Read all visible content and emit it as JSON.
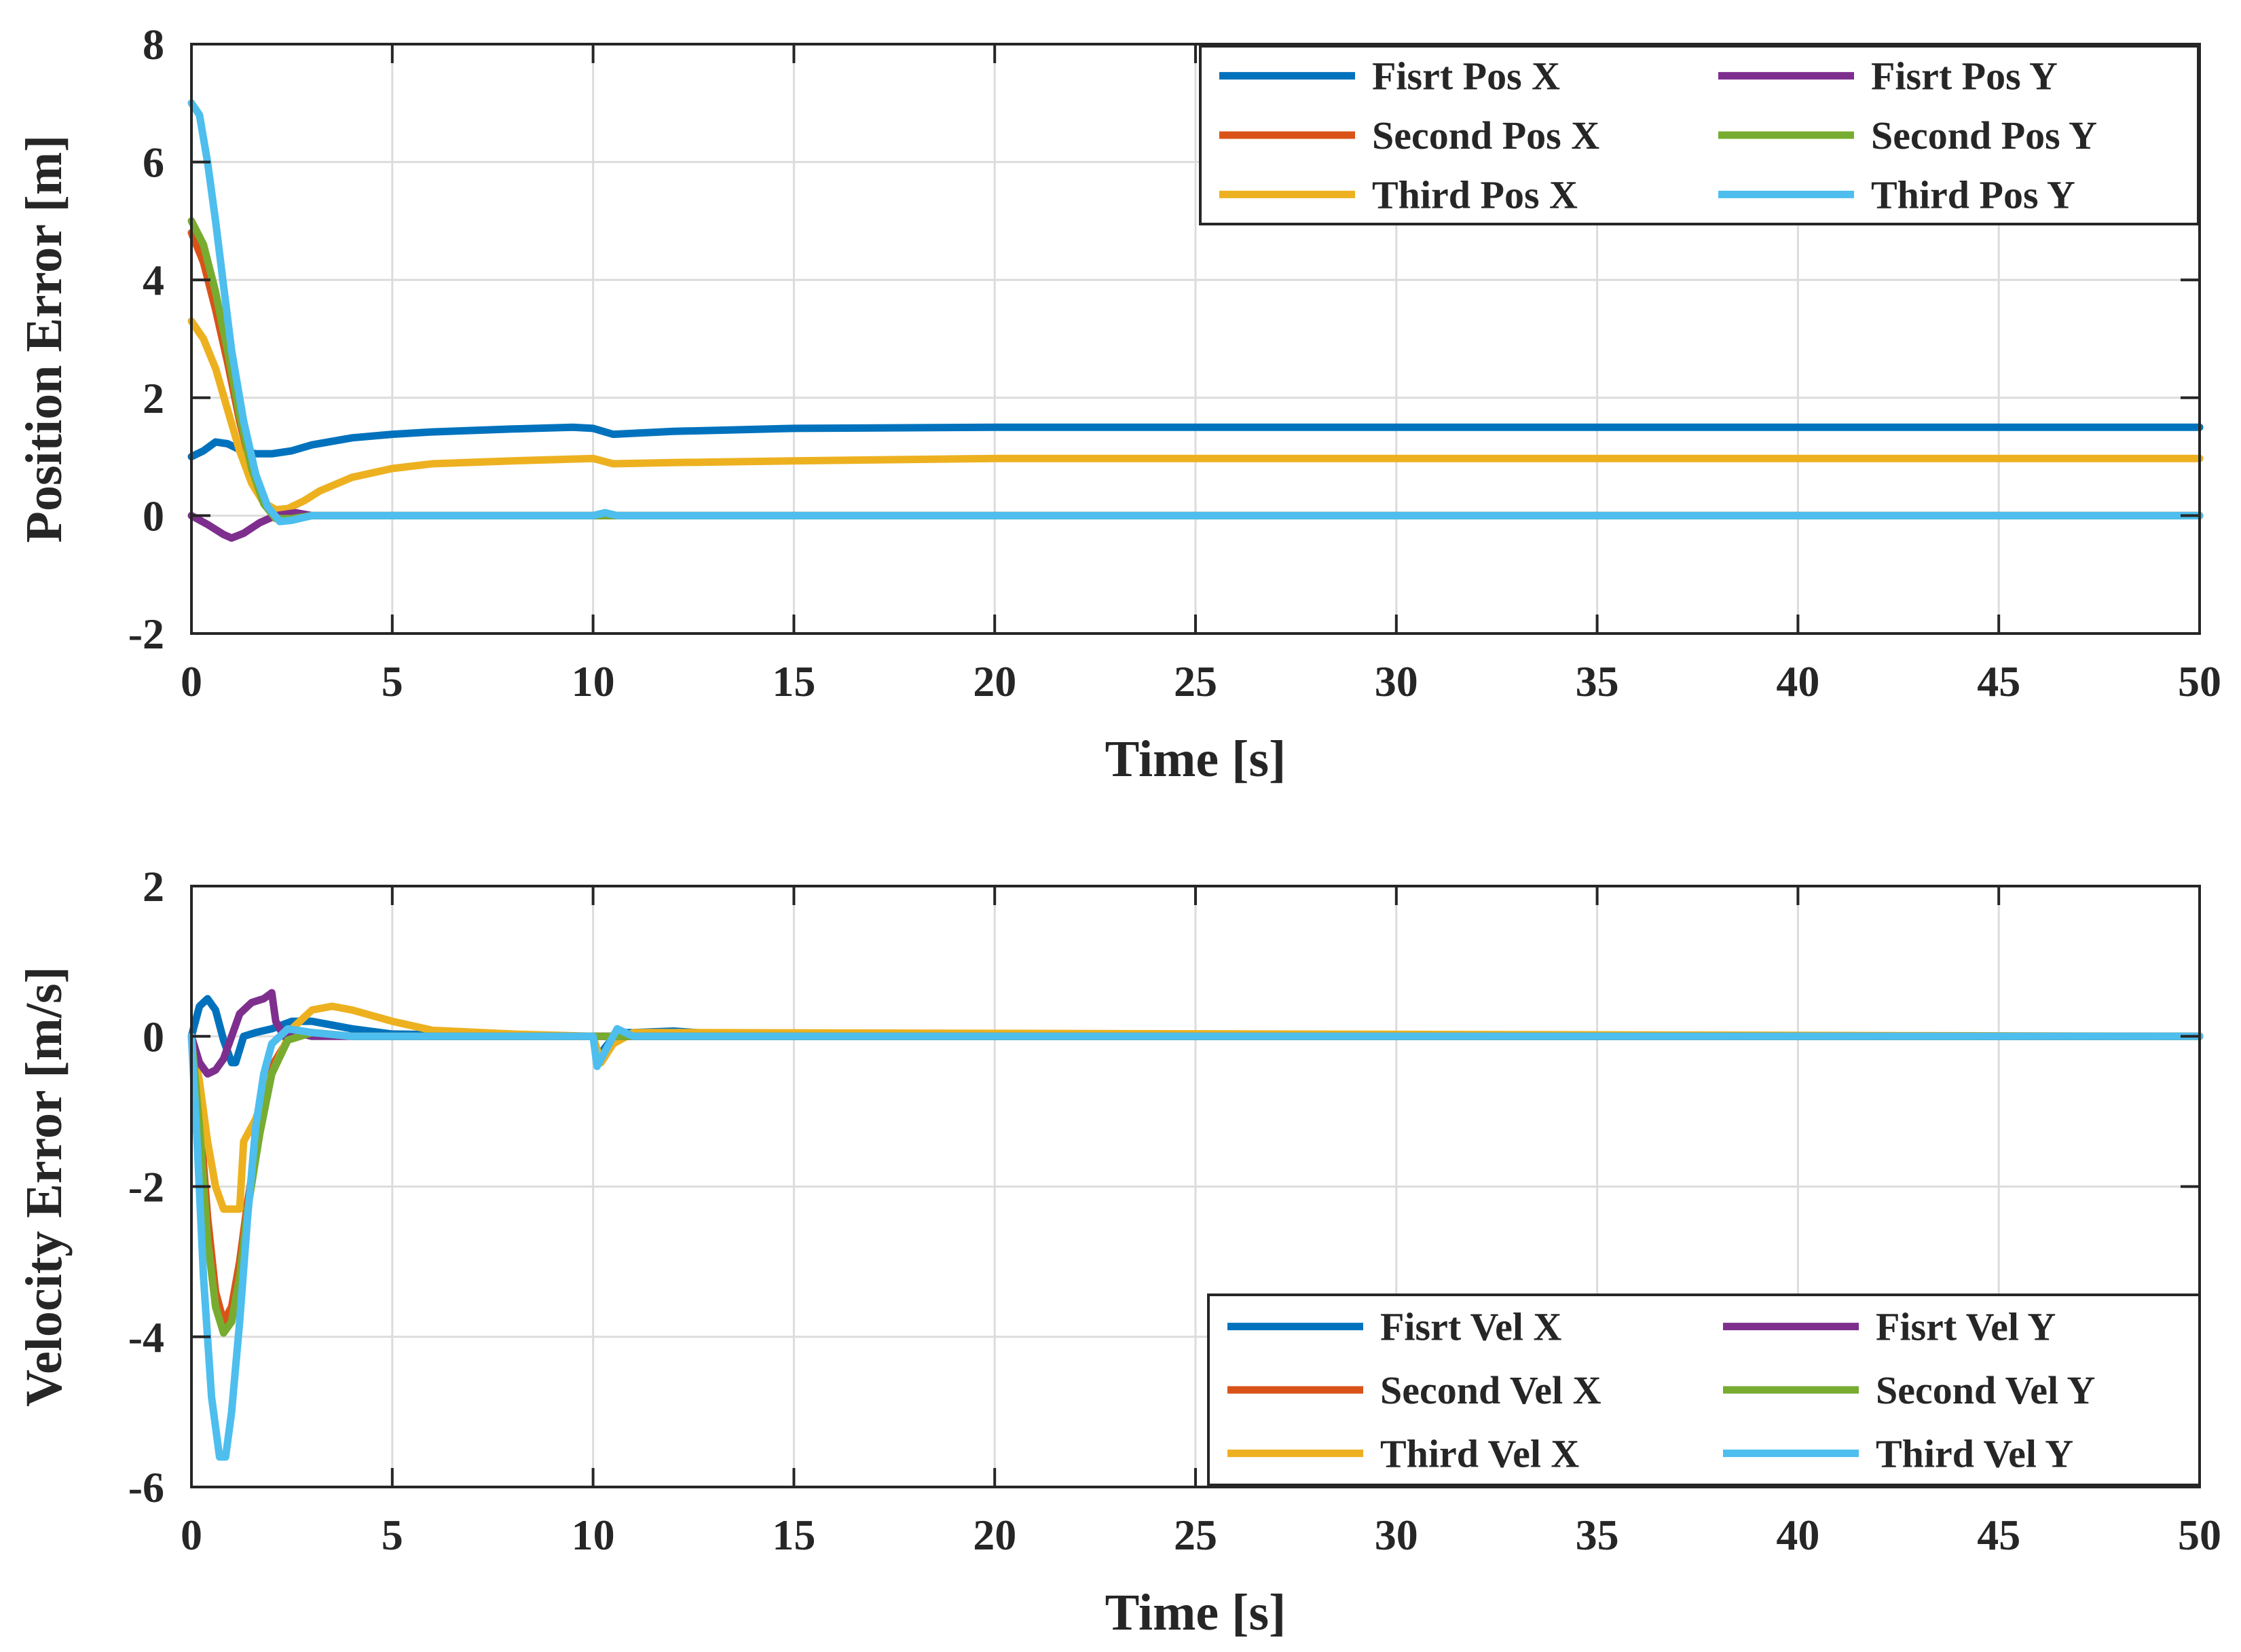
{
  "chart_data": [
    {
      "type": "line",
      "xlabel": "Time [s]",
      "ylabel": "Position Error [m]",
      "xlim": [
        0,
        50
      ],
      "ylim": [
        -2,
        8
      ],
      "xticks": [
        0,
        5,
        10,
        15,
        20,
        25,
        30,
        35,
        40,
        45,
        50
      ],
      "yticks": [
        -2,
        0,
        2,
        4,
        6,
        8
      ],
      "grid": true,
      "legend_position": "top-right",
      "legend_columns": 2,
      "series": [
        {
          "name": "Fisrt Pos X",
          "color": "#0072BD",
          "x": [
            0,
            0.3,
            0.6,
            0.9,
            1.2,
            1.6,
            2.0,
            2.5,
            3.0,
            4.0,
            5.0,
            6.0,
            8.0,
            9.5,
            10.0,
            10.5,
            12.0,
            15.0,
            20.0,
            30.0,
            40.0,
            50.0
          ],
          "y": [
            1.0,
            1.1,
            1.25,
            1.22,
            1.12,
            1.05,
            1.05,
            1.1,
            1.2,
            1.32,
            1.38,
            1.42,
            1.47,
            1.5,
            1.48,
            1.38,
            1.43,
            1.48,
            1.5,
            1.5,
            1.5,
            1.5
          ]
        },
        {
          "name": "Second Pos X",
          "color": "#D95319",
          "x": [
            0,
            0.3,
            0.6,
            0.9,
            1.2,
            1.5,
            1.8,
            2.1,
            2.5,
            3.0,
            5.0,
            50.0
          ],
          "y": [
            4.8,
            4.3,
            3.5,
            2.6,
            1.6,
            0.8,
            0.25,
            0.02,
            -0.05,
            0.0,
            0.0,
            0.0
          ]
        },
        {
          "name": "Third Pos X",
          "color": "#EDB120",
          "x": [
            0,
            0.3,
            0.6,
            0.9,
            1.2,
            1.5,
            1.8,
            2.1,
            2.4,
            2.8,
            3.2,
            4.0,
            5.0,
            6.0,
            8.0,
            10.0,
            10.5,
            12.0,
            15.0,
            20.0,
            30.0,
            50.0
          ],
          "y": [
            3.3,
            3.0,
            2.5,
            1.8,
            1.1,
            0.55,
            0.22,
            0.1,
            0.12,
            0.25,
            0.42,
            0.65,
            0.8,
            0.88,
            0.93,
            0.97,
            0.88,
            0.9,
            0.93,
            0.97,
            0.97,
            0.97
          ]
        },
        {
          "name": "Fisrt Pos Y",
          "color": "#7E2F8E",
          "x": [
            0,
            0.4,
            0.8,
            1.0,
            1.3,
            1.7,
            2.1,
            2.6,
            3.0,
            5.0,
            50.0
          ],
          "y": [
            0.0,
            -0.15,
            -0.32,
            -0.38,
            -0.3,
            -0.12,
            0.0,
            0.05,
            0.0,
            0.0,
            0.0
          ]
        },
        {
          "name": "Second Pos Y",
          "color": "#77AC30",
          "x": [
            0,
            0.3,
            0.6,
            0.9,
            1.2,
            1.5,
            1.8,
            2.1,
            2.5,
            3.0,
            5.0,
            50.0
          ],
          "y": [
            5.0,
            4.6,
            3.8,
            2.8,
            1.7,
            0.8,
            0.2,
            -0.05,
            -0.05,
            0.0,
            0.0,
            0.0
          ]
        },
        {
          "name": "Third Pos Y",
          "color": "#4DBEEE",
          "x": [
            0,
            0.2,
            0.4,
            0.6,
            0.8,
            1.0,
            1.3,
            1.6,
            1.9,
            2.2,
            2.5,
            3.0,
            5.0,
            10.0,
            10.3,
            10.6,
            50.0
          ],
          "y": [
            7.0,
            6.8,
            6.0,
            5.0,
            3.9,
            2.8,
            1.6,
            0.7,
            0.15,
            -0.1,
            -0.08,
            0.0,
            0.0,
            0.0,
            0.05,
            0.0,
            0.0
          ]
        }
      ]
    },
    {
      "type": "line",
      "xlabel": "Time [s]",
      "ylabel": "Velocity Error [m/s]",
      "xlim": [
        0,
        50
      ],
      "ylim": [
        -6,
        2
      ],
      "xticks": [
        0,
        5,
        10,
        15,
        20,
        25,
        30,
        35,
        40,
        45,
        50
      ],
      "yticks": [
        -6,
        -4,
        -2,
        0,
        2
      ],
      "grid": true,
      "legend_position": "bottom-right",
      "legend_columns": 2,
      "series": [
        {
          "name": "Fisrt Vel X",
          "color": "#0072BD",
          "x": [
            0,
            0.2,
            0.4,
            0.6,
            0.8,
            1.0,
            1.1,
            1.3,
            1.6,
            2.0,
            2.5,
            3.0,
            4.0,
            5.0,
            10.0,
            10.1,
            10.3,
            10.6,
            11.0,
            12.0,
            14.0,
            50.0
          ],
          "y": [
            0.0,
            0.4,
            0.5,
            0.35,
            -0.05,
            -0.35,
            -0.35,
            0.0,
            0.05,
            0.1,
            0.2,
            0.2,
            0.1,
            0.03,
            0.0,
            -0.3,
            -0.15,
            0.05,
            0.05,
            0.07,
            0.0,
            0.0
          ]
        },
        {
          "name": "Second Vel X",
          "color": "#D95319",
          "x": [
            0,
            0.2,
            0.4,
            0.6,
            0.8,
            1.0,
            1.2,
            1.4,
            1.7,
            2.0,
            2.4,
            3.0,
            4.0,
            50.0
          ],
          "y": [
            0.0,
            -1.0,
            -2.4,
            -3.4,
            -3.8,
            -3.6,
            -3.0,
            -2.2,
            -1.2,
            -0.4,
            -0.05,
            0.05,
            0.0,
            0.0
          ]
        },
        {
          "name": "Third Vel X",
          "color": "#EDB120",
          "x": [
            0,
            0.2,
            0.4,
            0.6,
            0.8,
            1.0,
            1.2,
            1.3,
            1.6,
            2.0,
            2.5,
            3.0,
            3.5,
            4.0,
            5.0,
            6.0,
            8.0,
            10.0,
            10.2,
            10.5,
            11.0,
            12.0,
            50.0
          ],
          "y": [
            0.0,
            -0.6,
            -1.4,
            -2.0,
            -2.3,
            -2.3,
            -2.3,
            -1.4,
            -1.1,
            -0.5,
            0.1,
            0.35,
            0.4,
            0.35,
            0.2,
            0.08,
            0.03,
            0.0,
            -0.35,
            -0.1,
            0.05,
            0.05,
            0.0
          ]
        },
        {
          "name": "Fisrt Vel Y",
          "color": "#7E2F8E",
          "x": [
            0,
            0.2,
            0.4,
            0.6,
            0.8,
            1.0,
            1.2,
            1.5,
            1.8,
            2.0,
            2.1,
            2.3,
            2.6,
            3.0,
            50.0
          ],
          "y": [
            0.0,
            -0.35,
            -0.5,
            -0.45,
            -0.3,
            0.0,
            0.3,
            0.45,
            0.5,
            0.58,
            0.2,
            0.0,
            0.05,
            0.0,
            0.0
          ]
        },
        {
          "name": "Second Vel Y",
          "color": "#77AC30",
          "x": [
            0,
            0.2,
            0.4,
            0.6,
            0.8,
            1.0,
            1.2,
            1.4,
            1.7,
            2.0,
            2.4,
            3.0,
            4.0,
            50.0
          ],
          "y": [
            0.0,
            -1.2,
            -2.7,
            -3.6,
            -3.95,
            -3.8,
            -3.2,
            -2.3,
            -1.3,
            -0.5,
            -0.05,
            0.05,
            0.0,
            0.0
          ]
        },
        {
          "name": "Third Vel Y",
          "color": "#4DBEEE",
          "x": [
            0,
            0.15,
            0.3,
            0.5,
            0.7,
            0.85,
            1.0,
            1.2,
            1.4,
            1.6,
            1.8,
            2.0,
            2.4,
            3.0,
            4.0,
            10.0,
            10.1,
            10.3,
            10.6,
            11.0,
            50.0
          ],
          "y": [
            0.0,
            -1.5,
            -3.2,
            -4.8,
            -5.6,
            -5.6,
            -5.0,
            -3.8,
            -2.4,
            -1.2,
            -0.5,
            -0.1,
            0.1,
            0.05,
            0.0,
            0.0,
            -0.4,
            -0.2,
            0.1,
            0.0,
            0.0
          ]
        }
      ]
    }
  ]
}
